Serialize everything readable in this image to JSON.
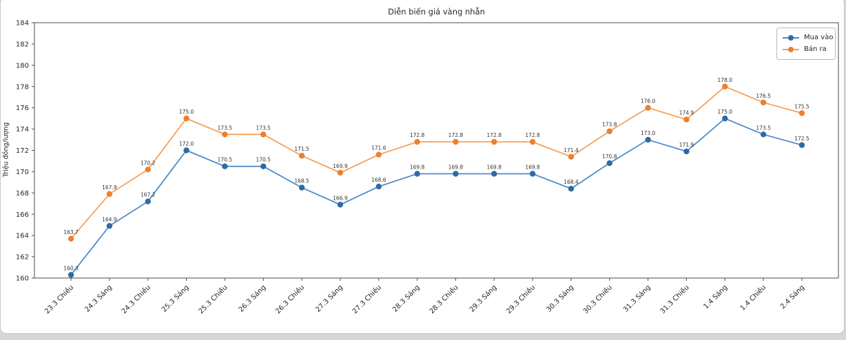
{
  "page": {
    "background_color": "#d6d6d6",
    "panel_color": "#ffffff",
    "panel_border_color": "#c9c9c9"
  },
  "chart_data": {
    "type": "line",
    "title": "Diễn biến giá vàng nhẫn",
    "xlabel": "",
    "ylabel": "Triệu đồng/lượng",
    "ylim": [
      160,
      184
    ],
    "ytick_step": 2,
    "grid": false,
    "legend_position": "upper right",
    "marker": "circle",
    "point_labels": true,
    "categories": [
      "23.3 Chiều",
      "24.3 Sáng",
      "24.3 Chiều",
      "25.3 Sáng",
      "25.3 Chiều",
      "26.3 Sáng",
      "26.3 Chiều",
      "27.3 Sáng",
      "27.3 Chiều",
      "28.3 Sáng",
      "28.3 Chiều",
      "29.3 Sáng",
      "29.3 Chiều",
      "30.3 Sáng",
      "30.3 Chiều",
      "31.3 Sáng",
      "31.3 Chiều",
      "1.4 Sáng",
      "1.4 Chiều",
      "2.4 Sáng"
    ],
    "series": [
      {
        "name": "Mua vào",
        "line_color": "#4f8bc9",
        "marker_color": "#2d6ba6",
        "values": [
          160.3,
          164.9,
          167.2,
          172.0,
          170.5,
          170.5,
          168.5,
          166.9,
          168.6,
          169.8,
          169.8,
          169.8,
          169.8,
          168.4,
          170.8,
          173.0,
          171.9,
          175.0,
          173.5,
          172.5
        ]
      },
      {
        "name": "Bán ra",
        "line_color": "#f5a05a",
        "marker_color": "#ed7f2e",
        "values": [
          163.7,
          167.9,
          170.2,
          175.0,
          173.5,
          173.5,
          171.5,
          169.9,
          171.6,
          172.8,
          172.8,
          172.8,
          172.8,
          171.4,
          173.8,
          176.0,
          174.9,
          178.0,
          176.5,
          175.5
        ]
      }
    ]
  }
}
